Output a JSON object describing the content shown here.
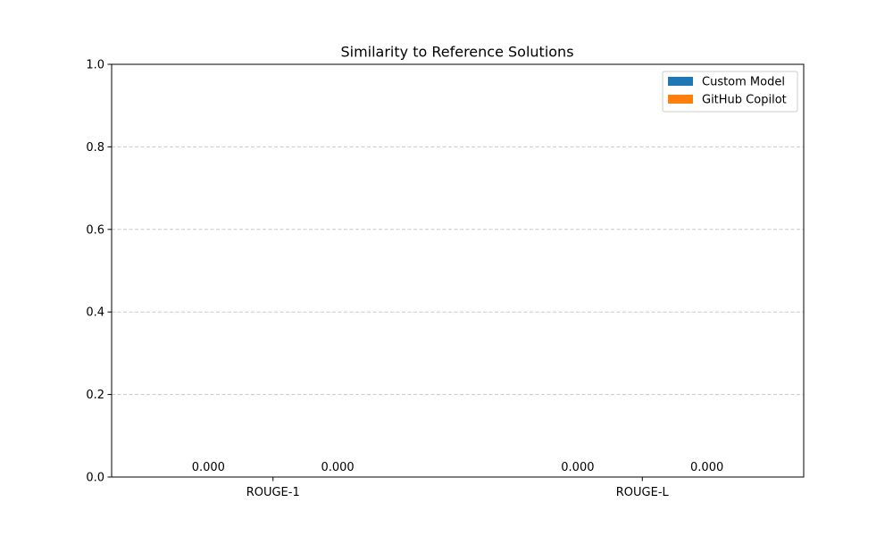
{
  "chart_data": {
    "type": "bar",
    "title": "Similarity to Reference Solutions",
    "xlabel": "",
    "ylabel": "",
    "categories": [
      "ROUGE-1",
      "ROUGE-L"
    ],
    "series": [
      {
        "name": "Custom Model",
        "values": [
          0.0,
          0.0
        ],
        "value_labels": [
          "0.000",
          "0.000"
        ],
        "color": "#1f77b4"
      },
      {
        "name": "GitHub Copilot",
        "values": [
          0.0,
          0.0
        ],
        "value_labels": [
          "0.000",
          "0.000"
        ],
        "color": "#ff7f0e"
      }
    ],
    "ylim": [
      0,
      1.0
    ],
    "yticks": [
      0.0,
      0.2,
      0.4,
      0.6,
      0.8,
      1.0
    ],
    "ytick_labels": [
      "0.0",
      "0.2",
      "0.4",
      "0.6",
      "0.8",
      "1.0"
    ],
    "grid": {
      "axis": "y",
      "style": "dashed",
      "color": "#c8c8c8"
    },
    "legend": "top-right"
  }
}
